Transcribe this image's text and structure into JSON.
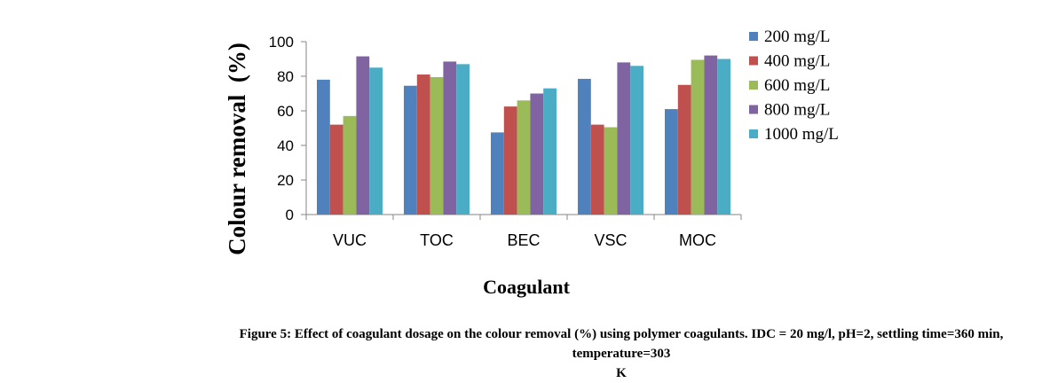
{
  "chart_data": {
    "type": "bar",
    "title": "",
    "xlabel": "Coagulant",
    "ylabel": "Colour removal  (%)",
    "ylim": [
      0,
      100
    ],
    "yticks": [
      "0",
      "20",
      "40",
      "60",
      "80",
      "100"
    ],
    "categories": [
      "VUC",
      "TOC",
      "BEC",
      "VSC",
      "MOC"
    ],
    "series": [
      {
        "name": "200 mg/L",
        "color": "#4F81BD",
        "values": [
          78,
          74.5,
          47.5,
          78.5,
          61
        ]
      },
      {
        "name": "400 mg/L",
        "color": "#C0504D",
        "values": [
          52,
          81,
          62.5,
          52,
          75
        ]
      },
      {
        "name": "600 mg/L",
        "color": "#9BBB59",
        "values": [
          57,
          79.5,
          66,
          50.5,
          89.5
        ]
      },
      {
        "name": "800 mg/L",
        "color": "#8064A2",
        "values": [
          91.5,
          88.5,
          70,
          88,
          92
        ]
      },
      {
        "name": "1000 mg/L",
        "color": "#4BACC6",
        "values": [
          85,
          87,
          73,
          86,
          90
        ]
      }
    ],
    "grid": false,
    "legend_position": "right"
  },
  "caption": {
    "line1": "Figure 5: Effect of coagulant dosage on the colour removal (%) using polymer coagulants. IDC = 20 mg/l, pH=2, settling time=360 min, temperature=303",
    "line2": "K"
  }
}
